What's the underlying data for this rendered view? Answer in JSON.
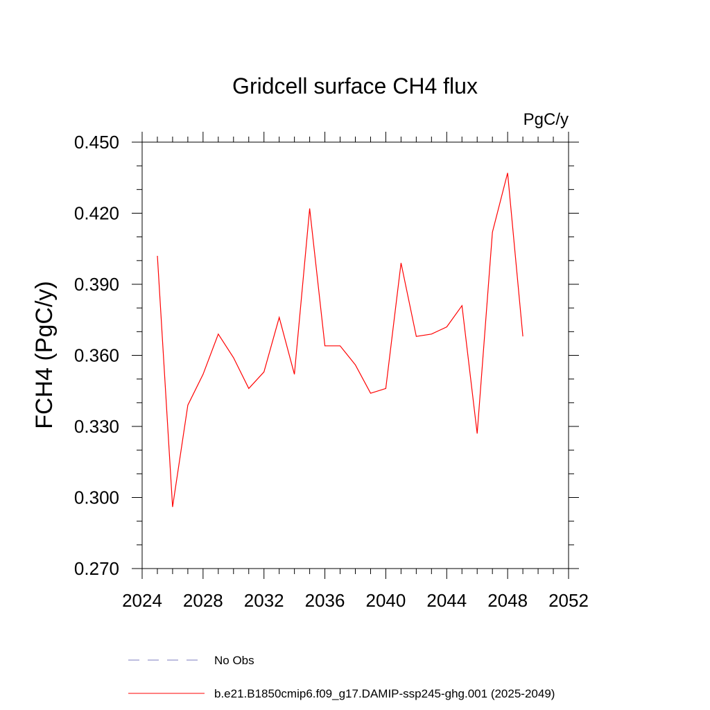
{
  "chart_data": {
    "type": "line",
    "title": "Gridcell surface CH4 flux",
    "units": "PgC/y",
    "ylabel": "FCH4  (PgC/y)",
    "xlabel": "",
    "xlim": [
      2024,
      2052
    ],
    "ylim": [
      0.27,
      0.45
    ],
    "x_ticks": [
      2024,
      2028,
      2032,
      2036,
      2040,
      2044,
      2048,
      2052
    ],
    "x_tick_labels": [
      "2024",
      "2028",
      "2032",
      "2036",
      "2040",
      "2044",
      "2048",
      "2052"
    ],
    "y_ticks": [
      0.27,
      0.3,
      0.33,
      0.36,
      0.39,
      0.42,
      0.45
    ],
    "y_tick_labels": [
      "0.270",
      "0.300",
      "0.330",
      "0.360",
      "0.390",
      "0.420",
      "0.450"
    ],
    "grid": false,
    "series": [
      {
        "name": "b.e21.B1850cmip6.f09_g17.DAMIP-ssp245-ghg.001 (2025-2049)",
        "color": "#ff0000",
        "style": "solid",
        "x": [
          2025,
          2026,
          2027,
          2028,
          2029,
          2030,
          2031,
          2032,
          2033,
          2034,
          2035,
          2036,
          2037,
          2038,
          2039,
          2040,
          2041,
          2042,
          2043,
          2044,
          2045,
          2046,
          2047,
          2048,
          2049
        ],
        "y": [
          0.402,
          0.296,
          0.339,
          0.352,
          0.369,
          0.359,
          0.346,
          0.353,
          0.376,
          0.352,
          0.422,
          0.364,
          0.364,
          0.356,
          0.344,
          0.346,
          0.399,
          0.368,
          0.369,
          0.372,
          0.381,
          0.327,
          0.412,
          0.437,
          0.368
        ]
      }
    ],
    "legend": [
      {
        "label": "No Obs",
        "color": "#7b7bbf",
        "style": "dashed"
      },
      {
        "label": "b.e21.B1850cmip6.f09_g17.DAMIP-ssp245-ghg.001 (2025-2049)",
        "color": "#ff0000",
        "style": "solid"
      }
    ],
    "legend_position": "bottom"
  }
}
